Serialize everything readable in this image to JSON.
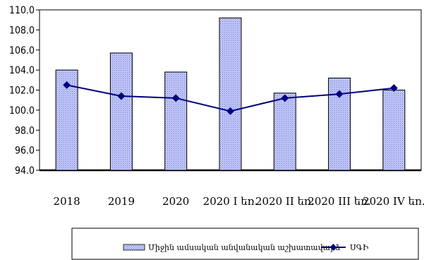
{
  "chart_data": {
    "type": "bar",
    "categories": [
      "2018",
      "2019",
      "2020",
      "2020 I եռ.",
      "2020 II եռ.",
      "2020 III եռ.",
      "2020 IV եռ."
    ],
    "series": [
      {
        "name": "Միջին ամսական անվանական աշխատավարձ",
        "type": "bar",
        "values": [
          104.0,
          105.7,
          103.8,
          109.2,
          101.7,
          103.2,
          102.0
        ],
        "color": "#9ea7ef"
      },
      {
        "name": "ՍԳԻ",
        "type": "line",
        "values": [
          102.5,
          101.4,
          101.2,
          99.9,
          101.2,
          101.6,
          102.2
        ],
        "color": "#000080"
      }
    ],
    "ylim": [
      94.0,
      110.0
    ],
    "yticks": [
      "94.0",
      "96.0",
      "98.0",
      "100.0",
      "102.0",
      "104.0",
      "106.0",
      "108.0",
      "110.0"
    ],
    "grid": false,
    "legend_position": "bottom"
  }
}
